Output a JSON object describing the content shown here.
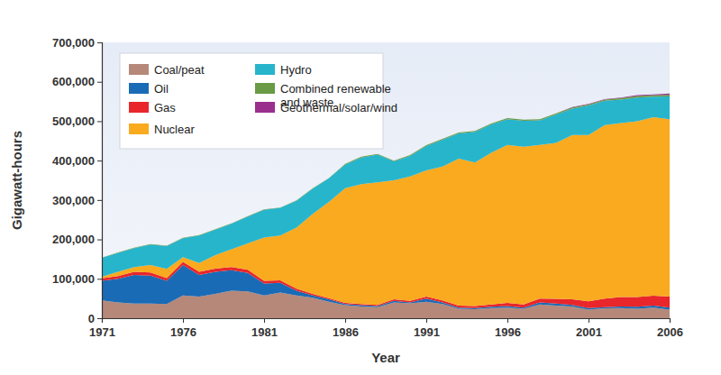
{
  "chart_data": {
    "type": "stacked_area",
    "stacked": true,
    "legend": "top-left",
    "grid": false,
    "x_label": "Year",
    "y_label": "Gigawatt-hours",
    "x": [
      1971,
      1972,
      1973,
      1974,
      1975,
      1976,
      1977,
      1978,
      1979,
      1980,
      1981,
      1982,
      1983,
      1984,
      1985,
      1986,
      1987,
      1988,
      1989,
      1990,
      1991,
      1992,
      1993,
      1994,
      1995,
      1996,
      1997,
      1998,
      1999,
      2000,
      2001,
      2002,
      2003,
      2004,
      2005,
      2006
    ],
    "xlim": [
      1971,
      2006
    ],
    "xticks": [
      1971,
      1976,
      1981,
      1986,
      1991,
      1996,
      2001,
      2006
    ],
    "ylim": [
      0,
      700000
    ],
    "yticks": [
      0,
      {
        "value": 100000,
        "label": "100,000"
      },
      {
        "value": 200000,
        "label": "200,000"
      },
      {
        "value": 300000,
        "label": "300,000"
      },
      {
        "value": 400000,
        "label": "400,000"
      },
      {
        "value": 500000,
        "label": "500,000"
      },
      {
        "value": 600000,
        "label": "600,000"
      },
      {
        "value": 700000,
        "label": "700,000"
      }
    ],
    "series": [
      {
        "name": "Coal/peat",
        "color": "#b5887a",
        "values": [
          45000,
          40000,
          37000,
          37000,
          36000,
          58000,
          55000,
          62000,
          70000,
          68000,
          58000,
          65000,
          58000,
          52000,
          42000,
          33000,
          30000,
          28000,
          40000,
          38000,
          42000,
          36000,
          24000,
          23000,
          26000,
          27000,
          24000,
          35000,
          32000,
          30000,
          22000,
          25000,
          26000,
          24000,
          27000,
          22000
        ]
      },
      {
        "name": "Oil",
        "color": "#1a6bb5",
        "values": [
          50000,
          60000,
          73000,
          71000,
          59000,
          77000,
          55000,
          56000,
          52000,
          47000,
          30000,
          25000,
          12000,
          6000,
          6000,
          3000,
          3000,
          3000,
          4000,
          2000,
          8000,
          4000,
          3000,
          3000,
          3000,
          4000,
          3000,
          5000,
          5000,
          4000,
          4000,
          3000,
          4000,
          5000,
          5000,
          5000
        ]
      },
      {
        "name": "Gas",
        "color": "#e8262b",
        "values": [
          6000,
          7000,
          8000,
          8000,
          7000,
          8000,
          8000,
          8000,
          8000,
          8000,
          7000,
          6000,
          5000,
          4000,
          3000,
          3000,
          3000,
          3000,
          4000,
          4000,
          5000,
          5000,
          5000,
          5000,
          6000,
          8000,
          8000,
          10000,
          12000,
          14000,
          17000,
          22000,
          24000,
          25000,
          25000,
          28000
        ]
      },
      {
        "name": "Nuclear",
        "color": "#f9aa1f",
        "values": [
          4000,
          11000,
          12000,
          19000,
          23000,
          12000,
          22000,
          34000,
          45000,
          67000,
          110000,
          114000,
          155000,
          203000,
          244000,
          291000,
          304000,
          311000,
          302000,
          316000,
          320000,
          340000,
          373000,
          364000,
          385000,
          401000,
          400000,
          390000,
          396000,
          417000,
          422000,
          440000,
          441000,
          446000,
          453000,
          450000
        ]
      },
      {
        "name": "Hydro",
        "color": "#27b5cc",
        "values": [
          48000,
          48000,
          48000,
          52000,
          58000,
          48000,
          70000,
          65000,
          65000,
          68000,
          70000,
          70000,
          68000,
          64000,
          60000,
          60000,
          68000,
          70000,
          48000,
          52000,
          62000,
          68000,
          64000,
          78000,
          72000,
          65000,
          66000,
          62000,
          72000,
          67000,
          75000,
          62000,
          60000,
          60000,
          52000,
          58000
        ]
      },
      {
        "name": "Combined renewable and waste",
        "color": "#6a9a45",
        "values": [
          1000,
          1000,
          1000,
          1000,
          1000,
          1000,
          1000,
          1000,
          1000,
          1000,
          1000,
          1000,
          1000,
          1000,
          1000,
          2000,
          2000,
          2000,
          2000,
          2000,
          2000,
          2000,
          2000,
          2000,
          2000,
          3000,
          3000,
          3000,
          3000,
          3000,
          3000,
          3000,
          4000,
          4000,
          4000,
          4000
        ]
      },
      {
        "name": "Geothermal/solar/wind",
        "color": "#9a2f8e",
        "values": [
          0,
          0,
          0,
          0,
          0,
          0,
          0,
          0,
          0,
          0,
          0,
          0,
          0,
          0,
          0,
          0,
          0,
          0,
          0,
          0,
          0,
          0,
          0,
          0,
          0,
          0,
          0,
          0,
          0,
          1000,
          1000,
          1000,
          1000,
          2000,
          2000,
          3000
        ]
      }
    ]
  }
}
